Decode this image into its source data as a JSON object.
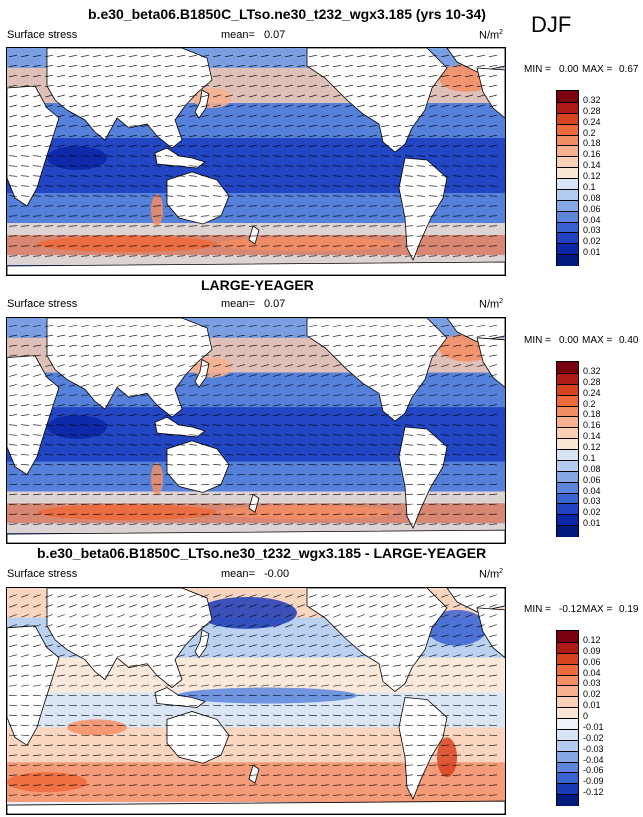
{
  "season": "DJF",
  "panels": [
    {
      "title": "b.e30_beta06.B1850C_LTso.ne30_t232_wgx3.185 (yrs 10-34)",
      "left_label": "Surface stress",
      "mean_label": "mean=",
      "mean_value": "0.07",
      "units": "N/m",
      "units_exp": "2",
      "min_label": "MIN =",
      "min_value": "0.00",
      "max_label": "MAX =",
      "max_value": "0.67",
      "colorbar_labels": [
        "0.32",
        "0.28",
        "0.24",
        "0.2",
        "0.18",
        "0.16",
        "0.14",
        "0.12",
        "0.1",
        "0.08",
        "0.06",
        "0.04",
        "0.03",
        "0.02",
        "0.01"
      ]
    },
    {
      "title": "LARGE-YEAGER",
      "left_label": "Surface stress",
      "mean_label": "mean=",
      "mean_value": "0.07",
      "units": "N/m",
      "units_exp": "2",
      "min_label": "MIN =",
      "min_value": "0.00",
      "max_label": "MAX =",
      "max_value": "0.40",
      "colorbar_labels": [
        "0.32",
        "0.28",
        "0.24",
        "0.2",
        "0.18",
        "0.16",
        "0.14",
        "0.12",
        "0.1",
        "0.08",
        "0.06",
        "0.04",
        "0.03",
        "0.02",
        "0.01"
      ]
    },
    {
      "title": "b.e30_beta06.B1850C_LTso.ne30_t232_wgx3.185 - LARGE-YEAGER",
      "left_label": "Surface stress",
      "mean_label": "mean=",
      "mean_value": "-0.00",
      "units": "N/m",
      "units_exp": "2",
      "min_label": "MIN =",
      "min_value": "-0.12",
      "max_label": "MAX =",
      "max_value": "0.19",
      "colorbar_labels": [
        "0.12",
        "0.09",
        "0.06",
        "0.04",
        "0.03",
        "0.02",
        "0.01",
        "0",
        "-0.01",
        "-0.02",
        "-0.03",
        "-0.04",
        "-0.06",
        "-0.09",
        "-0.12"
      ]
    }
  ],
  "colors": {
    "abs_scale": [
      "#7a0010",
      "#b01a14",
      "#d8431f",
      "#ee6a3a",
      "#f58d63",
      "#f9b08e",
      "#fcd0b5",
      "#fbe6d3",
      "#d6e4f5",
      "#b2cbee",
      "#86a9e6",
      "#5c86dd",
      "#3a63d2",
      "#2042c2",
      "#0b26a6",
      "#001a80"
    ],
    "diff_scale": [
      "#7a0010",
      "#b01a14",
      "#d8431f",
      "#ee6a3a",
      "#f58d63",
      "#f9b08e",
      "#fcd0b5",
      "#fbe6d3",
      "#eef2fa",
      "#d6e4f5",
      "#b2cbee",
      "#86a9e6",
      "#5c86dd",
      "#3a63d2",
      "#1a3bb8",
      "#001a80"
    ],
    "land": "#ffffff"
  }
}
